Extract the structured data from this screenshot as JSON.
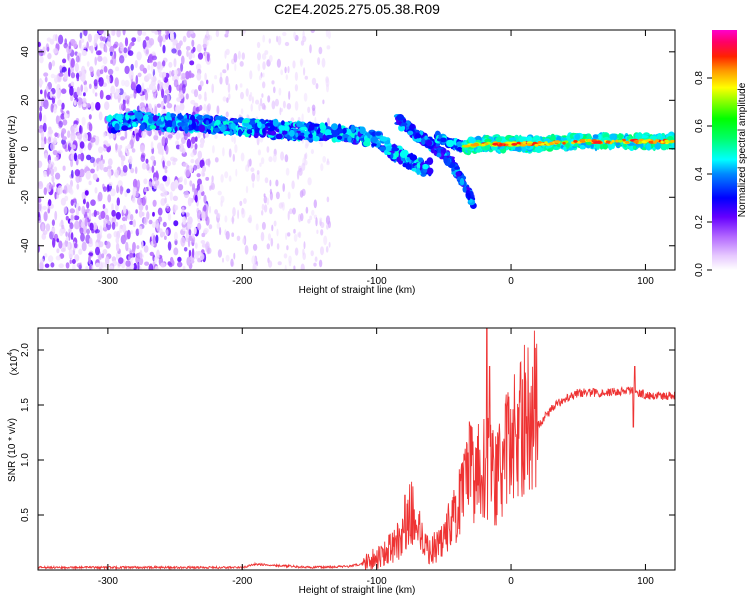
{
  "chart_data": [
    {
      "type": "heatmap",
      "title": "C2E4.2025.275.05.38.R09",
      "xlabel": "Height of straight line (km)",
      "ylabel": "Frequency (Hz)",
      "xlim": [
        -352,
        122
      ],
      "ylim": [
        -50,
        49
      ],
      "xticks": [
        -300,
        -200,
        -100,
        0,
        100
      ],
      "xtick_labels": [
        "-300",
        "-200",
        "-100",
        "0",
        "100"
      ],
      "yticks": [
        -40,
        -20,
        0,
        20,
        40
      ],
      "ytick_labels": [
        "-40",
        "-20",
        "0",
        "20",
        "40"
      ],
      "colorbar": {
        "label": "Normalized spectral amplitude",
        "range": [
          0,
          1
        ],
        "ticks": [
          0.0,
          0.2,
          0.4,
          0.6,
          0.8
        ],
        "tick_labels": [
          "0.0",
          "0.2",
          "0.4",
          "0.6",
          "0.8"
        ],
        "colormap": [
          "#ffffff",
          "#cc66ff",
          "#6600ff",
          "#0000ff",
          "#00ffff",
          "#00ff00",
          "#ffff00",
          "#ff8800",
          "#ff0000",
          "#ff00aa"
        ]
      },
      "noise_region_x": [
        -352,
        -225
      ],
      "sparse_region_x": [
        -225,
        -135
      ],
      "main_track": [
        {
          "x": -300,
          "f": 10
        },
        {
          "x": -280,
          "f": 12
        },
        {
          "x": -260,
          "f": 11
        },
        {
          "x": -225,
          "f": 10
        },
        {
          "x": -200,
          "f": 9
        },
        {
          "x": -175,
          "f": 8
        },
        {
          "x": -150,
          "f": 7
        },
        {
          "x": -120,
          "f": 6
        },
        {
          "x": -100,
          "f": 4
        },
        {
          "x": -90,
          "f": 0
        },
        {
          "x": -80,
          "f": -4
        },
        {
          "x": -70,
          "f": -7
        },
        {
          "x": -60,
          "f": -8
        }
      ],
      "secondary_track": [
        {
          "x": -85,
          "f": 12
        },
        {
          "x": -75,
          "f": 8
        },
        {
          "x": -65,
          "f": 4
        },
        {
          "x": -55,
          "f": 0
        },
        {
          "x": -45,
          "f": -5
        },
        {
          "x": -38,
          "f": -12
        },
        {
          "x": -28,
          "f": -22
        }
      ],
      "descending_branch": [
        {
          "x": -55,
          "f": 5
        },
        {
          "x": -45,
          "f": 2
        },
        {
          "x": -35,
          "f": 1
        }
      ],
      "steady_track": [
        {
          "x": -35,
          "f": 1
        },
        {
          "x": -20,
          "f": 2
        },
        {
          "x": 0,
          "f": 2
        },
        {
          "x": 20,
          "f": 2
        },
        {
          "x": 50,
          "f": 3
        },
        {
          "x": 80,
          "f": 3
        },
        {
          "x": 100,
          "f": 3
        },
        {
          "x": 122,
          "f": 3
        }
      ]
    },
    {
      "type": "line",
      "xlabel": "Height of straight line (km)",
      "ylabel": "SNR (10 * v/v)",
      "yscale_label": "(x10",
      "yscale_exponent": "4",
      "xlim": [
        -352,
        122
      ],
      "ylim": [
        0,
        2.2
      ],
      "xticks": [
        -300,
        -200,
        -100,
        0,
        100
      ],
      "xtick_labels": [
        "-300",
        "-200",
        "-100",
        "0",
        "100"
      ],
      "yticks": [
        0.5,
        1.0,
        1.5,
        2.0
      ],
      "ytick_labels": [
        "0.5",
        "1.0",
        "1.5",
        "2.0"
      ],
      "color": "#ee3333",
      "series": [
        {
          "name": "SNR",
          "x": [
            -352,
            -300,
            -250,
            -200,
            -190,
            -150,
            -120,
            -100,
            -90,
            -80,
            -75,
            -60,
            -50,
            -40,
            -30,
            -20,
            -10,
            0,
            10,
            20,
            30,
            40,
            50,
            70,
            90,
            100,
            110,
            122
          ],
          "values": [
            0.02,
            0.02,
            0.02,
            0.02,
            0.05,
            0.02,
            0.03,
            0.08,
            0.15,
            0.25,
            0.45,
            0.12,
            0.25,
            0.45,
            0.75,
            0.8,
            0.7,
            1.0,
            1.15,
            1.3,
            1.45,
            1.55,
            1.6,
            1.6,
            1.62,
            1.58,
            1.57,
            1.57
          ]
        }
      ],
      "spikes": [
        {
          "x": -79,
          "y": 0.68
        },
        {
          "x": -31,
          "y": 1.35
        },
        {
          "x": -18,
          "y": 2.2
        },
        {
          "x": -16,
          "y": 1.85
        },
        {
          "x": 92,
          "y": 1.85
        },
        {
          "x": 91,
          "y": 1.3
        }
      ]
    }
  ]
}
